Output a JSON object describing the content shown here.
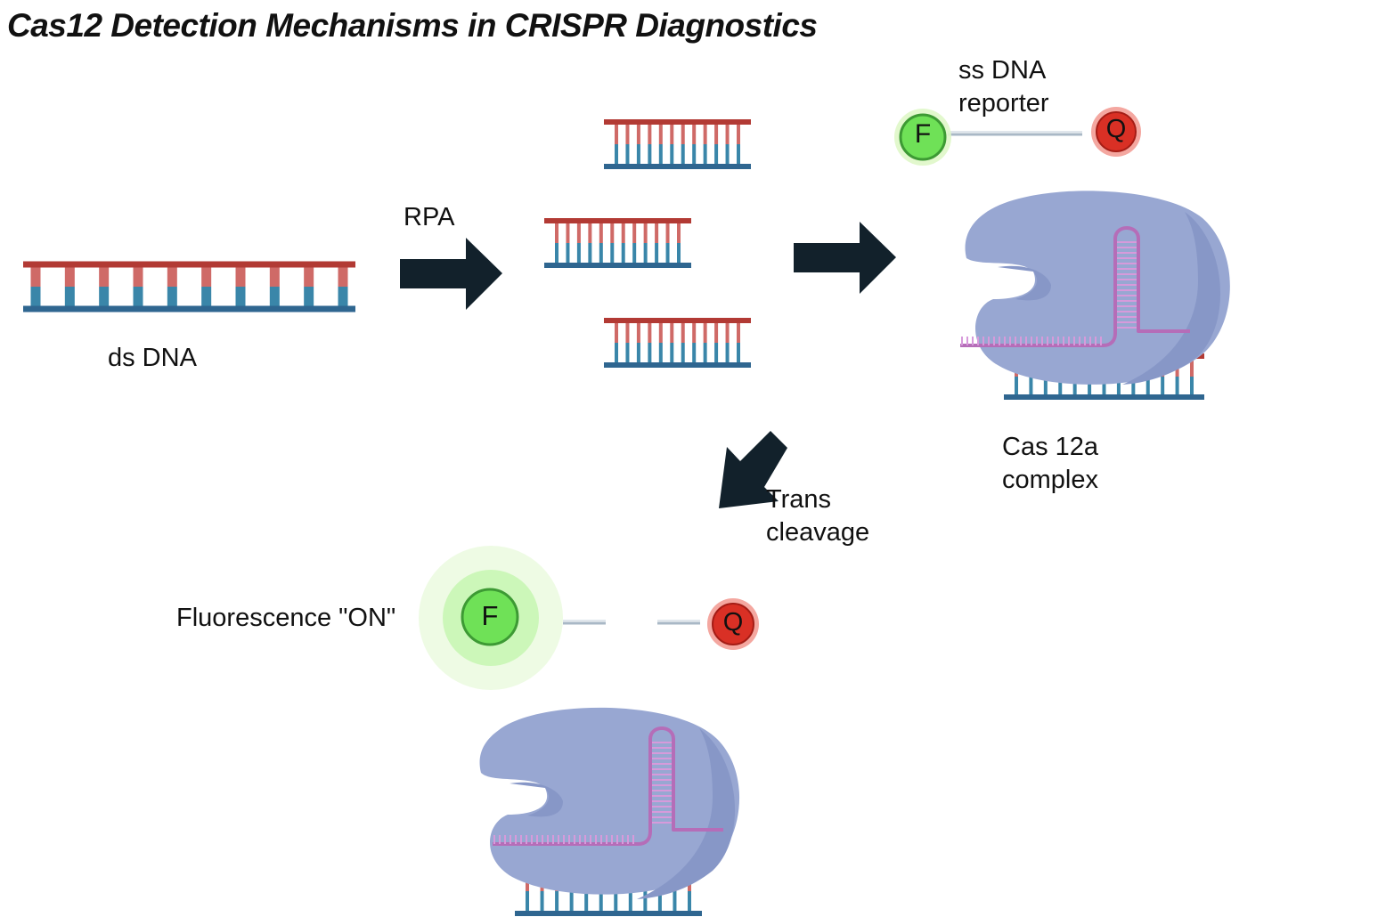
{
  "title": "Cas12  Detection Mechanisms in CRISPR Diagnostics",
  "labels": {
    "ds_dna": "ds DNA",
    "rpa": "RPA",
    "ss_reporter_line1": "ss DNA",
    "ss_reporter_line2": "reporter",
    "cas_complex_line1": "Cas 12a",
    "cas_complex_line2": "complex",
    "trans_line1": "Trans",
    "trans_line2": "cleavage",
    "fluorescence": "Fluorescence \"ON\""
  },
  "nodes": {
    "fluorophore": "F",
    "quencher": "Q"
  },
  "colors": {
    "strand_top": "#b23a34",
    "strand_bottom": "#2f6690",
    "rung_top": "#cf6a67",
    "rung_bottom": "#3a86a9",
    "arrow": "#12212b",
    "protein": "#98a7d2",
    "protein_shadow": "#8797c7",
    "guide_rna": "#b56db8",
    "fluor_green": "#6fe157",
    "fluor_ring": "#3d9a34",
    "fluor_glow_outer": "#eefbe4",
    "fluor_glow_inner": "#ccf7b9",
    "quencher_red": "#d93025",
    "quencher_glow": "#f4a7a0",
    "reporter_line": "#a9b8c6"
  }
}
